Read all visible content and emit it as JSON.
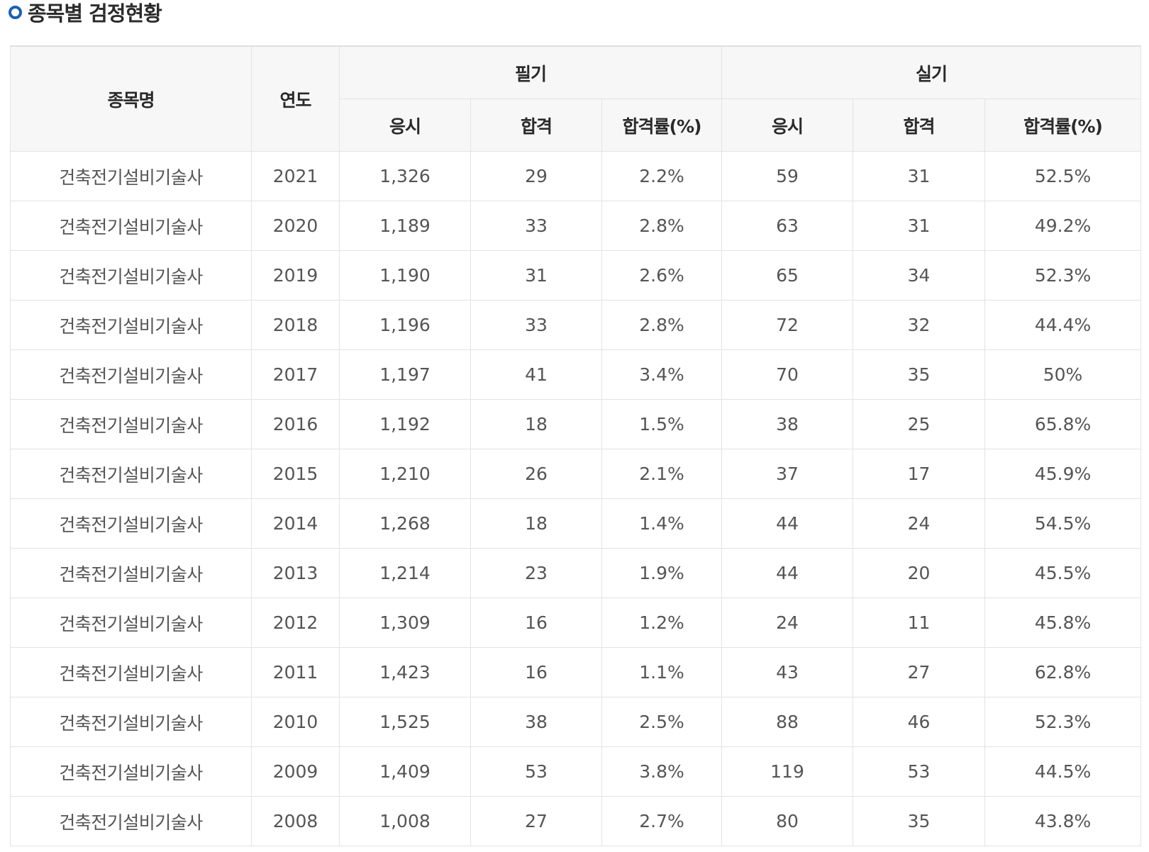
{
  "title": "종목별 검정현황",
  "icons": {
    "title_bullet": "circle-bullet-icon"
  },
  "colors": {
    "accent": "#1a5fb4",
    "header_bg": "#f7f7f7",
    "border": "#e3e3e3"
  },
  "table": {
    "headers": {
      "name": "종목명",
      "year": "연도",
      "written": "필기",
      "practical": "실기",
      "apply": "응시",
      "pass": "합격",
      "rate": "합격률(%)"
    },
    "rows": [
      {
        "name": "건축전기설비기술사",
        "year": "2021",
        "w_apply": "1,326",
        "w_pass": "29",
        "w_rate": "2.2%",
        "p_apply": "59",
        "p_pass": "31",
        "p_rate": "52.5%"
      },
      {
        "name": "건축전기설비기술사",
        "year": "2020",
        "w_apply": "1,189",
        "w_pass": "33",
        "w_rate": "2.8%",
        "p_apply": "63",
        "p_pass": "31",
        "p_rate": "49.2%"
      },
      {
        "name": "건축전기설비기술사",
        "year": "2019",
        "w_apply": "1,190",
        "w_pass": "31",
        "w_rate": "2.6%",
        "p_apply": "65",
        "p_pass": "34",
        "p_rate": "52.3%"
      },
      {
        "name": "건축전기설비기술사",
        "year": "2018",
        "w_apply": "1,196",
        "w_pass": "33",
        "w_rate": "2.8%",
        "p_apply": "72",
        "p_pass": "32",
        "p_rate": "44.4%"
      },
      {
        "name": "건축전기설비기술사",
        "year": "2017",
        "w_apply": "1,197",
        "w_pass": "41",
        "w_rate": "3.4%",
        "p_apply": "70",
        "p_pass": "35",
        "p_rate": "50%"
      },
      {
        "name": "건축전기설비기술사",
        "year": "2016",
        "w_apply": "1,192",
        "w_pass": "18",
        "w_rate": "1.5%",
        "p_apply": "38",
        "p_pass": "25",
        "p_rate": "65.8%"
      },
      {
        "name": "건축전기설비기술사",
        "year": "2015",
        "w_apply": "1,210",
        "w_pass": "26",
        "w_rate": "2.1%",
        "p_apply": "37",
        "p_pass": "17",
        "p_rate": "45.9%"
      },
      {
        "name": "건축전기설비기술사",
        "year": "2014",
        "w_apply": "1,268",
        "w_pass": "18",
        "w_rate": "1.4%",
        "p_apply": "44",
        "p_pass": "24",
        "p_rate": "54.5%"
      },
      {
        "name": "건축전기설비기술사",
        "year": "2013",
        "w_apply": "1,214",
        "w_pass": "23",
        "w_rate": "1.9%",
        "p_apply": "44",
        "p_pass": "20",
        "p_rate": "45.5%"
      },
      {
        "name": "건축전기설비기술사",
        "year": "2012",
        "w_apply": "1,309",
        "w_pass": "16",
        "w_rate": "1.2%",
        "p_apply": "24",
        "p_pass": "11",
        "p_rate": "45.8%"
      },
      {
        "name": "건축전기설비기술사",
        "year": "2011",
        "w_apply": "1,423",
        "w_pass": "16",
        "w_rate": "1.1%",
        "p_apply": "43",
        "p_pass": "27",
        "p_rate": "62.8%"
      },
      {
        "name": "건축전기설비기술사",
        "year": "2010",
        "w_apply": "1,525",
        "w_pass": "38",
        "w_rate": "2.5%",
        "p_apply": "88",
        "p_pass": "46",
        "p_rate": "52.3%"
      },
      {
        "name": "건축전기설비기술사",
        "year": "2009",
        "w_apply": "1,409",
        "w_pass": "53",
        "w_rate": "3.8%",
        "p_apply": "119",
        "p_pass": "53",
        "p_rate": "44.5%"
      },
      {
        "name": "건축전기설비기술사",
        "year": "2008",
        "w_apply": "1,008",
        "w_pass": "27",
        "w_rate": "2.7%",
        "p_apply": "80",
        "p_pass": "35",
        "p_rate": "43.8%"
      }
    ]
  }
}
